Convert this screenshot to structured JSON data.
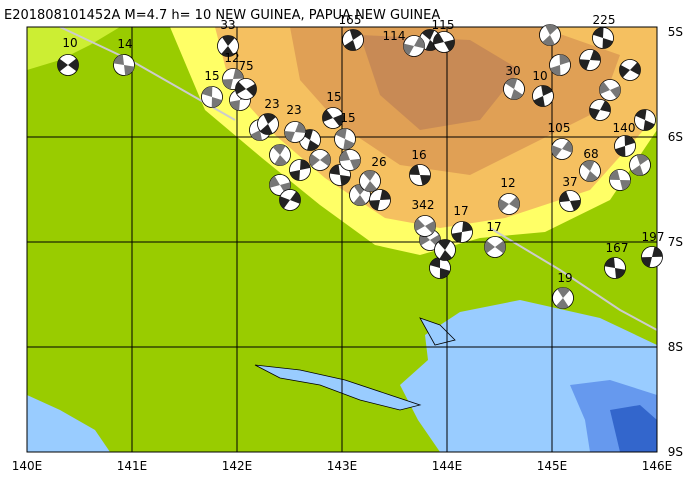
{
  "header": {
    "title": "E201808101452A M=4.7 h= 10 NEW GUINEA, PAPUA NEW GUINEA"
  },
  "axes": {
    "longitude_labels": [
      "140E",
      "141E",
      "142E",
      "143E",
      "144E",
      "145E",
      "146E"
    ],
    "latitude_labels": [
      "5S",
      "6S",
      "7S",
      "8S",
      "9S"
    ]
  },
  "events": [
    {
      "label": "10"
    },
    {
      "label": "14"
    },
    {
      "label": "33"
    },
    {
      "label": "12"
    },
    {
      "label": "75"
    },
    {
      "label": "15"
    },
    {
      "label": "23"
    },
    {
      "label": "23"
    },
    {
      "label": "15"
    },
    {
      "label": "15"
    },
    {
      "label": "165"
    },
    {
      "label": "114"
    },
    {
      "label": "115"
    },
    {
      "label": "30"
    },
    {
      "label": "10"
    },
    {
      "label": "105"
    },
    {
      "label": "37"
    },
    {
      "label": "68"
    },
    {
      "label": "140"
    },
    {
      "label": "12"
    },
    {
      "label": "16"
    },
    {
      "label": "26"
    },
    {
      "label": "17"
    },
    {
      "label": "17"
    },
    {
      "label": "167"
    },
    {
      "label": "19"
    },
    {
      "label": "197"
    },
    {
      "label": "342"
    },
    {
      "label": "225"
    }
  ]
}
